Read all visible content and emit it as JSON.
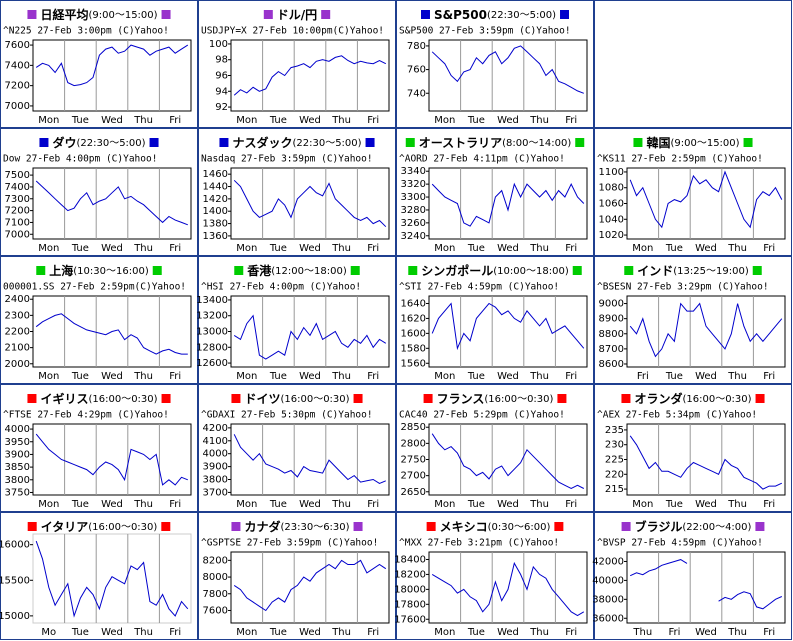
{
  "chart_data": [
    {
      "type": "line",
      "title": "日経平均",
      "hours": "(9:00～15:00)",
      "marker_color": "#9933cc",
      "subtitle": "^N225 27-Feb 3:00pm (C)Yahoo!",
      "color": "#0000cc",
      "x_labels": [
        "Mon",
        "Tue",
        "Wed",
        "Thu",
        "Fri"
      ],
      "ylim": [
        6950,
        7650
      ],
      "yticks": [
        7000,
        7200,
        7400,
        7600
      ],
      "values": [
        7380,
        7420,
        7400,
        7330,
        7420,
        7230,
        7200,
        7210,
        7230,
        7280,
        7500,
        7560,
        7580,
        7520,
        7540,
        7600,
        7580,
        7560,
        7500,
        7540,
        7560,
        7580,
        7520,
        7560,
        7600
      ]
    },
    {
      "type": "line",
      "title": "ドル/円",
      "marker_color": "#9933cc",
      "subtitle": "USDJPY=X 27-Feb 10:00pm(C)Yahoo!",
      "color": "#0000cc",
      "x_labels": [
        "Mon",
        "Tue",
        "Wed",
        "Thu",
        "Fri"
      ],
      "ylim": [
        91.5,
        100.5
      ],
      "yticks": [
        92,
        94,
        96,
        98,
        100
      ],
      "values": [
        93.5,
        94.2,
        93.8,
        94.5,
        94,
        94.3,
        95.8,
        96.5,
        96,
        97,
        97.2,
        97.5,
        97,
        97.8,
        98,
        97.8,
        98.3,
        98.5,
        97.9,
        97.5,
        97.8,
        97.6,
        97.5,
        97.9,
        97.5
      ]
    },
    {
      "type": "line",
      "title": "S&P500",
      "hours": "(22:30～5:00)",
      "marker_color": "#0000cc",
      "subtitle": "S&P500 27-Feb 3:59pm (C)Yahoo!",
      "color": "#0000cc",
      "x_labels": [
        "Mon",
        "Tue",
        "Wed",
        "Thu",
        "Fri"
      ],
      "ylim": [
        725,
        785
      ],
      "yticks": [
        740,
        760,
        780
      ],
      "values": [
        775,
        770,
        765,
        755,
        750,
        758,
        760,
        770,
        765,
        772,
        775,
        765,
        770,
        778,
        780,
        775,
        770,
        765,
        755,
        760,
        750,
        748,
        745,
        742,
        740
      ]
    },
    {
      "type": "line",
      "title": "ダウ",
      "hours": "(22:30～5:00)",
      "marker_color": "#0000cc",
      "subtitle": "Dow 27-Feb 4:00pm (C)Yahoo!",
      "color": "#0000cc",
      "x_labels": [
        "Mon",
        "Tue",
        "Wed",
        "Thu",
        "Fri"
      ],
      "ylim": [
        6960,
        7560
      ],
      "yticks": [
        7000,
        7100,
        7200,
        7300,
        7400,
        7500
      ],
      "values": [
        7450,
        7400,
        7350,
        7300,
        7250,
        7200,
        7220,
        7300,
        7350,
        7250,
        7280,
        7300,
        7350,
        7400,
        7300,
        7320,
        7280,
        7250,
        7200,
        7150,
        7100,
        7150,
        7120,
        7100,
        7080
      ]
    },
    {
      "type": "line",
      "title": "ナスダック",
      "hours": "(22:30～5:00)",
      "marker_color": "#0000cc",
      "subtitle": "Nasdaq 27-Feb 3:59pm (C)Yahoo!",
      "color": "#0000cc",
      "x_labels": [
        "Mon",
        "Tue",
        "Wed",
        "Thu",
        "Fri"
      ],
      "ylim": [
        1355,
        1470
      ],
      "yticks": [
        1360,
        1380,
        1400,
        1420,
        1440,
        1460
      ],
      "values": [
        1450,
        1440,
        1420,
        1400,
        1390,
        1395,
        1400,
        1420,
        1410,
        1390,
        1420,
        1430,
        1440,
        1430,
        1425,
        1445,
        1420,
        1410,
        1400,
        1390,
        1385,
        1390,
        1380,
        1385,
        1375
      ]
    },
    {
      "type": "line",
      "title": "オーストラリア",
      "hours": "(8:00～14:00)",
      "marker_color": "#00cc00",
      "subtitle": "^AORD 27-Feb 4:11pm (C)Yahoo!",
      "color": "#0000cc",
      "x_labels": [
        "Mon",
        "Tue",
        "Wed",
        "Thu",
        "Fri"
      ],
      "ylim": [
        3235,
        3345
      ],
      "yticks": [
        3240,
        3260,
        3280,
        3300,
        3320,
        3340
      ],
      "values": [
        3320,
        3310,
        3300,
        3295,
        3290,
        3260,
        3255,
        3270,
        3265,
        3260,
        3300,
        3310,
        3280,
        3320,
        3300,
        3320,
        3310,
        3300,
        3310,
        3295,
        3310,
        3300,
        3320,
        3300,
        3290
      ]
    },
    {
      "type": "line",
      "title": "韓国",
      "hours": "(9:00～15:00)",
      "marker_color": "#00cc00",
      "subtitle": "^KS11 27-Feb 2:59pm (C)Yahoo!",
      "color": "#0000cc",
      "x_labels": [
        "Mon",
        "Tue",
        "Wed",
        "Thu",
        "Fri"
      ],
      "ylim": [
        1015,
        1105
      ],
      "yticks": [
        1020,
        1040,
        1060,
        1080,
        1100
      ],
      "values": [
        1090,
        1070,
        1080,
        1060,
        1040,
        1030,
        1060,
        1065,
        1062,
        1070,
        1095,
        1085,
        1090,
        1080,
        1075,
        1100,
        1080,
        1060,
        1040,
        1030,
        1065,
        1075,
        1070,
        1080,
        1065
      ]
    },
    {
      "type": "line",
      "title": "上海",
      "hours": "(10:30～16:00)",
      "marker_color": "#00cc00",
      "subtitle": "000001.SS 27-Feb 2:59pm(C)Yahoo!",
      "color": "#0000cc",
      "x_labels": [
        "Mon",
        "Tue",
        "Wed",
        "Thu",
        "Fri"
      ],
      "ylim": [
        1980,
        2420
      ],
      "yticks": [
        2000,
        2100,
        2200,
        2300,
        2400
      ],
      "values": [
        2230,
        2260,
        2280,
        2300,
        2310,
        2280,
        2250,
        2230,
        2210,
        2200,
        2190,
        2180,
        2200,
        2210,
        2150,
        2180,
        2160,
        2100,
        2080,
        2060,
        2080,
        2090,
        2070,
        2060,
        2060
      ]
    },
    {
      "type": "line",
      "title": "香港",
      "hours": "(12:00～18:00)",
      "marker_color": "#00cc00",
      "subtitle": "^HSI 27-Feb 4:00pm (C)Yahoo!",
      "color": "#0000cc",
      "x_labels": [
        "Mon",
        "Tue",
        "Wed",
        "Thu",
        "Fri"
      ],
      "ylim": [
        12550,
        13450
      ],
      "yticks": [
        12600,
        12800,
        13000,
        13200,
        13400
      ],
      "values": [
        12950,
        12900,
        13100,
        13200,
        12700,
        12650,
        12700,
        12750,
        12700,
        13000,
        12900,
        13050,
        12950,
        13100,
        12900,
        12950,
        13000,
        12850,
        12800,
        12900,
        12850,
        12950,
        12800,
        12900,
        12850
      ]
    },
    {
      "type": "line",
      "title": "シンガポール",
      "hours": "(10:00～18:00)",
      "marker_color": "#00cc00",
      "subtitle": "^STI 27-Feb 4:59pm (C)Yahoo!",
      "color": "#0000cc",
      "x_labels": [
        "Mon",
        "Tue",
        "Wed",
        "Thu",
        "Fri"
      ],
      "ylim": [
        1555,
        1650
      ],
      "yticks": [
        1560,
        1580,
        1600,
        1620,
        1640
      ],
      "values": [
        1600,
        1620,
        1630,
        1640,
        1580,
        1600,
        1590,
        1620,
        1630,
        1640,
        1635,
        1625,
        1630,
        1620,
        1615,
        1630,
        1620,
        1610,
        1620,
        1600,
        1605,
        1610,
        1600,
        1590,
        1580
      ]
    },
    {
      "type": "line",
      "title": "インド",
      "hours": "(13:25～19:00)",
      "marker_color": "#00cc00",
      "subtitle": "^BSESN 27-Feb 3:29pm (C)Yahoo!",
      "color": "#0000cc",
      "x_labels": [
        "Fri",
        "Tue",
        "Wed",
        "Thu",
        "Fri"
      ],
      "ylim": [
        8580,
        9050
      ],
      "yticks": [
        8600,
        8700,
        8800,
        8900,
        9000
      ],
      "values": [
        8850,
        8800,
        8900,
        8750,
        8650,
        8700,
        8800,
        8750,
        9000,
        8950,
        8950,
        9000,
        8850,
        8800,
        8750,
        8700,
        8800,
        9000,
        8850,
        8750,
        8800,
        8750,
        8800,
        8850,
        8900
      ]
    },
    {
      "type": "line",
      "title": "イギリス",
      "hours": "(16:00～0:30)",
      "marker_color": "#ff0000",
      "subtitle": "^FTSE 27-Feb 4:29pm (C)Yahoo!",
      "color": "#0000cc",
      "x_labels": [
        "Mon",
        "Tue",
        "Wed",
        "Thu",
        "Fri"
      ],
      "ylim": [
        3740,
        4020
      ],
      "yticks": [
        3750,
        3800,
        3850,
        3900,
        3950,
        4000
      ],
      "values": [
        3980,
        3950,
        3920,
        3900,
        3880,
        3870,
        3860,
        3850,
        3840,
        3820,
        3850,
        3870,
        3860,
        3840,
        3800,
        3920,
        3910,
        3900,
        3880,
        3900,
        3780,
        3800,
        3780,
        3810,
        3800
      ]
    },
    {
      "type": "line",
      "title": "ドイツ",
      "hours": "(16:00～0:30)",
      "marker_color": "#ff0000",
      "subtitle": "^GDAXI 27-Feb 5:30pm (C)Yahoo!",
      "color": "#0000cc",
      "x_labels": [
        "Mon",
        "Tue",
        "Wed",
        "Thu",
        "Fri"
      ],
      "ylim": [
        3680,
        4230
      ],
      "yticks": [
        3700,
        3800,
        3900,
        4000,
        4100,
        4200
      ],
      "values": [
        4150,
        4050,
        4000,
        3950,
        4000,
        3920,
        3900,
        3880,
        3850,
        3870,
        3820,
        3900,
        3870,
        3860,
        3850,
        3950,
        3900,
        3850,
        3800,
        3830,
        3780,
        3790,
        3800,
        3770,
        3790
      ]
    },
    {
      "type": "line",
      "title": "フランス",
      "hours": "(16:00～0:30)",
      "marker_color": "#ff0000",
      "subtitle": "CAC40 27-Feb 5:29pm (C)Yahoo!",
      "color": "#0000cc",
      "x_labels": [
        "Mon",
        "Tue",
        "Wed",
        "Thu",
        "Fri"
      ],
      "ylim": [
        2640,
        2860
      ],
      "yticks": [
        2650,
        2700,
        2750,
        2800,
        2850
      ],
      "values": [
        2830,
        2800,
        2780,
        2790,
        2770,
        2730,
        2720,
        2700,
        2710,
        2690,
        2720,
        2730,
        2700,
        2720,
        2740,
        2780,
        2760,
        2740,
        2720,
        2700,
        2680,
        2670,
        2660,
        2670,
        2660
      ]
    },
    {
      "type": "line",
      "title": "オランダ",
      "hours": "(16:00～0:30)",
      "marker_color": "#ff0000",
      "subtitle": "^AEX 27-Feb 5:34pm (C)Yahoo!",
      "color": "#0000cc",
      "x_labels": [
        "Mon",
        "Tue",
        "Wed",
        "Thu",
        "Fri"
      ],
      "ylim": [
        213,
        237
      ],
      "yticks": [
        215,
        220,
        225,
        230,
        235
      ],
      "values": [
        233,
        230,
        226,
        222,
        224,
        221,
        221,
        220,
        219,
        222,
        224,
        223,
        222,
        221,
        220,
        225,
        223,
        222,
        219,
        218,
        217,
        215,
        216,
        216,
        217
      ]
    },
    {
      "type": "line",
      "title": "イタリア",
      "hours": "(16:00～0:30)",
      "marker_color": "#ff0000",
      "color": "#0000cc",
      "x_labels": [
        "Mo",
        "Tue",
        "Wed",
        "Thu",
        "Fri"
      ],
      "ylim": [
        14900,
        16150
      ],
      "yticks": [
        15000,
        15500,
        16000
      ],
      "values": [
        16050,
        15800,
        15400,
        15150,
        15300,
        15450,
        15000,
        15250,
        15400,
        15300,
        15100,
        15400,
        15550,
        15500,
        15450,
        15700,
        15650,
        15750,
        15200,
        15150,
        15300,
        15100,
        15000,
        15200,
        15100
      ]
    },
    {
      "type": "line",
      "title": "カナダ",
      "hours": "(23:30～6:30)",
      "marker_color": "#9933cc",
      "subtitle": "^GSPTSE 27-Feb 3:59pm (C)Yahoo!",
      "color": "#0000cc",
      "x_labels": [
        "Mon",
        "Tue",
        "Wed",
        "Thu",
        "Fri"
      ],
      "ylim": [
        7450,
        8300
      ],
      "yticks": [
        7600,
        7800,
        8000,
        8200
      ],
      "values": [
        7900,
        7850,
        7750,
        7700,
        7650,
        7600,
        7700,
        7750,
        7700,
        7850,
        7900,
        8000,
        7950,
        8050,
        8100,
        8150,
        8100,
        8200,
        8150,
        8150,
        8200,
        8050,
        8100,
        8150,
        8100
      ]
    },
    {
      "type": "line",
      "title": "メキシコ",
      "hours": "(0:30～6:00)",
      "marker_color": "#ff0000",
      "subtitle": "^MXX 27-Feb 3:21pm (C)Yahoo!",
      "color": "#0000cc",
      "x_labels": [
        "Mon",
        "Tue",
        "Wed",
        "Thu",
        "Fri"
      ],
      "ylim": [
        17550,
        18500
      ],
      "yticks": [
        17600,
        17800,
        18000,
        18200,
        18400
      ],
      "values": [
        18200,
        18150,
        18100,
        18050,
        17950,
        18000,
        17900,
        17850,
        17700,
        17800,
        18100,
        17850,
        18000,
        18350,
        18200,
        18000,
        18300,
        18200,
        18150,
        18000,
        17900,
        17800,
        17700,
        17650,
        17700
      ]
    },
    {
      "type": "line",
      "title": "ブラジル",
      "hours": "(22:00～4:00)",
      "marker_color": "#9933cc",
      "subtitle": "^BVSP 27-Feb 4:59pm (C)Yahoo!",
      "color": "#0000cc",
      "x_labels": [
        "Thu",
        "Fri",
        "Wed",
        "Thu",
        "Fri"
      ],
      "ylim": [
        35500,
        43000
      ],
      "yticks": [
        36000,
        38000,
        40000,
        42000
      ],
      "values": [
        40500,
        40800,
        40600,
        41000,
        41200,
        41600,
        41800,
        42000,
        42200,
        41800,
        null,
        null,
        null,
        null,
        37800,
        38200,
        38000,
        38500,
        38800,
        38600,
        37200,
        37000,
        37500,
        38000,
        38300
      ]
    }
  ]
}
